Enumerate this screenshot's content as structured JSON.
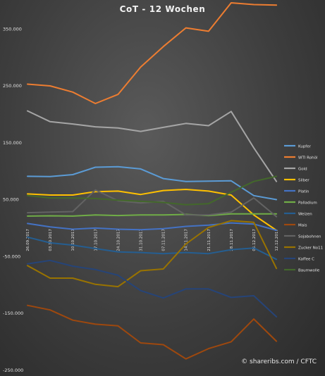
{
  "chart_data": {
    "type": "line",
    "title": "CoT - 12 Wochen",
    "credit": "© shareribs.com / CFTC",
    "xlabel": "",
    "ylabel": "",
    "ylim": [
      -250000,
      400000
    ],
    "yticks": [
      {
        "value": 350000,
        "label": "350.000"
      },
      {
        "value": 250000,
        "label": "250.000"
      },
      {
        "value": 150000,
        "label": "150.000"
      },
      {
        "value": 50000,
        "label": "50.000"
      },
      {
        "value": -50000,
        "label": "-50.000"
      },
      {
        "value": -150000,
        "label": "-150.000"
      },
      {
        "value": -250000,
        "label": "-250.000"
      }
    ],
    "grid": false,
    "legend_position": "right",
    "categories": [
      "26.09.2017",
      "03.10.2017",
      "10.10.2017",
      "17.10.2017",
      "24.10.2017",
      "31.10.2017",
      "07.11.2017",
      "14.11.2017",
      "21.11.2017",
      "28.11.2017",
      "05.12.2017",
      "12.12.2017"
    ],
    "series": [
      {
        "name": "Kupfer",
        "color": "#5b9bd5",
        "values": [
          90000,
          89500,
          93000,
          106000,
          107000,
          103000,
          86000,
          81000,
          81500,
          82000,
          56000,
          49000
        ]
      },
      {
        "name": "WTI Rohöl",
        "color": "#ed7d31",
        "values": [
          252000,
          249000,
          238000,
          218000,
          234000,
          282000,
          318000,
          351000,
          345000,
          395000,
          392000,
          391000
        ]
      },
      {
        "name": "Gold",
        "color": "#a5a5a5",
        "values": [
          205000,
          186000,
          182000,
          177000,
          175000,
          169000,
          176000,
          183000,
          179000,
          204000,
          140000,
          81000
        ]
      },
      {
        "name": "Silber",
        "color": "#ffc000",
        "values": [
          59000,
          57000,
          57000,
          63000,
          64000,
          58000,
          65000,
          67000,
          64000,
          57000,
          22000,
          -5000
        ]
      },
      {
        "name": "Platin",
        "color": "#4472c4",
        "values": [
          7000,
          1000,
          -3000,
          -1000,
          -3000,
          -4000,
          -2000,
          2000,
          4000,
          8000,
          6000,
          -5000
        ]
      },
      {
        "name": "Palladium",
        "color": "#70ad47",
        "values": [
          20000,
          20500,
          20000,
          22000,
          21000,
          22000,
          22000,
          23000,
          21000,
          24000,
          24000,
          24000
        ]
      },
      {
        "name": "Weizen",
        "color": "#255e91",
        "values": [
          -17000,
          -27000,
          -31000,
          -37000,
          -43000,
          -44000,
          -46000,
          -44000,
          -46000,
          -39000,
          -36000,
          -56000
        ]
      },
      {
        "name": "Mais",
        "color": "#9e480e",
        "values": [
          -137000,
          -145000,
          -163000,
          -170000,
          -173000,
          -203000,
          -206000,
          -231000,
          -213000,
          -201000,
          -161000,
          -200000
        ]
      },
      {
        "name": "Sojabohnen",
        "color": "#636363",
        "values": [
          26000,
          27000,
          28000,
          66000,
          47000,
          43000,
          46000,
          22000,
          22000,
          27000,
          52000,
          19000
        ]
      },
      {
        "name": "Zucker No11",
        "color": "#997300",
        "values": [
          -67000,
          -89000,
          -89000,
          -100000,
          -104000,
          -76000,
          -73000,
          -29000,
          0,
          12000,
          9000,
          -72000
        ]
      },
      {
        "name": "Kaffee C",
        "color": "#264478",
        "values": [
          -64000,
          -58000,
          -68000,
          -74000,
          -84000,
          -111000,
          -124000,
          -108000,
          -108000,
          -123000,
          -120000,
          -157000
        ]
      },
      {
        "name": "Baumwolle",
        "color": "#43682b",
        "values": [
          56000,
          52000,
          52000,
          51000,
          48000,
          46000,
          44000,
          40000,
          42000,
          62000,
          81000,
          90000
        ]
      }
    ]
  }
}
